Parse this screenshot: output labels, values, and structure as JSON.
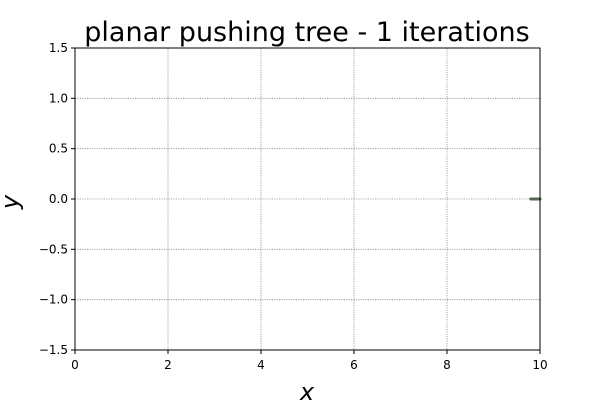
{
  "chart_data": {
    "type": "line",
    "title": "planar pushing tree - 1 iterations",
    "xlabel": "x",
    "ylabel": "y",
    "xlim": [
      0,
      10
    ],
    "ylim": [
      -1.5,
      1.5
    ],
    "xticks": [
      0,
      2,
      4,
      6,
      8,
      10
    ],
    "xtick_labels": [
      "0",
      "2",
      "4",
      "6",
      "8",
      "10"
    ],
    "yticks": [
      1.5,
      1.0,
      0.5,
      0.0,
      -0.5,
      -1.0,
      -1.5
    ],
    "ytick_labels": [
      "1.5",
      "1.0",
      "0.5",
      "0.0",
      "−0.5",
      "−1.0",
      "−1.5"
    ],
    "grid": true,
    "series": [
      {
        "x": [
          9.8,
          10.0
        ],
        "y": [
          0.0,
          0.0
        ],
        "color": "#556b4f"
      }
    ]
  }
}
